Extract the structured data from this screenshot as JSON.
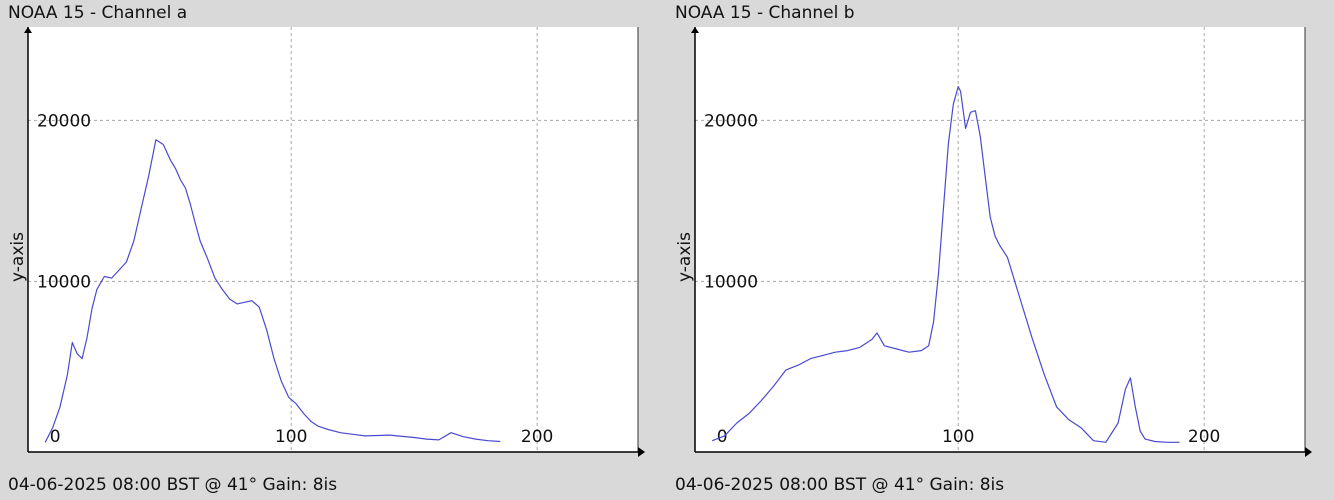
{
  "colors": {
    "background": "#d9d9d9",
    "plot_background": "#ffffff",
    "line": "#4a4ad0",
    "grid": "#a8a8a8",
    "axis": "#000000"
  },
  "chart_data": [
    {
      "type": "line",
      "title": "NOAA 15 - Channel a",
      "ylabel": "y-axis",
      "footer": "04-06-2025 08:00 BST @ 41° Gain: 8is",
      "xlim": [
        -7,
        241
      ],
      "ylim": [
        -600,
        25800
      ],
      "xticks": [
        0,
        100,
        200
      ],
      "yticks": [
        10000,
        20000
      ],
      "grid": true,
      "x": [
        0,
        3,
        6,
        9,
        11,
        13,
        15,
        17,
        19,
        21,
        24,
        27,
        30,
        33,
        36,
        39,
        42,
        45,
        48,
        51,
        53,
        55,
        57,
        59,
        61,
        63,
        66,
        69,
        72,
        75,
        78,
        81,
        84,
        87,
        90,
        93,
        96,
        99,
        102,
        105,
        108,
        111,
        115,
        120,
        125,
        130,
        140,
        150,
        155,
        160,
        165,
        170,
        175,
        180,
        185
      ],
      "y": [
        0,
        900,
        2200,
        4200,
        6200,
        5500,
        5200,
        6500,
        8300,
        9500,
        10300,
        10200,
        10700,
        11200,
        12500,
        14500,
        16500,
        18800,
        18500,
        17500,
        17000,
        16300,
        15800,
        14800,
        13600,
        12500,
        11400,
        10200,
        9500,
        8900,
        8600,
        8700,
        8800,
        8400,
        7000,
        5200,
        3800,
        2800,
        2400,
        1800,
        1300,
        1000,
        800,
        600,
        500,
        400,
        450,
        300,
        200,
        150,
        600,
        350,
        200,
        100,
        50
      ]
    },
    {
      "type": "line",
      "title": "NOAA 15 - Channel b",
      "ylabel": "y-axis",
      "footer": "04-06-2025 08:00 BST @ 41° Gain: 8is",
      "xlim": [
        -7,
        241
      ],
      "ylim": [
        -600,
        25800
      ],
      "xticks": [
        0,
        100,
        200
      ],
      "yticks": [
        10000,
        20000
      ],
      "grid": true,
      "x": [
        0,
        5,
        10,
        15,
        20,
        25,
        30,
        35,
        40,
        45,
        50,
        55,
        60,
        65,
        67,
        70,
        75,
        80,
        85,
        88,
        90,
        92,
        94,
        96,
        98,
        100,
        101,
        103,
        105,
        107,
        109,
        111,
        113,
        115,
        117,
        120,
        125,
        130,
        135,
        140,
        145,
        150,
        155,
        160,
        165,
        168,
        170,
        172,
        174,
        176,
        180,
        185,
        190
      ],
      "y": [
        100,
        400,
        1200,
        1800,
        2600,
        3500,
        4500,
        4800,
        5200,
        5400,
        5600,
        5700,
        5900,
        6400,
        6800,
        6000,
        5800,
        5600,
        5700,
        6000,
        7500,
        10500,
        14500,
        18500,
        21000,
        22100,
        21800,
        19500,
        20500,
        20600,
        19000,
        16500,
        14000,
        12800,
        12200,
        11500,
        9000,
        6500,
        4200,
        2200,
        1400,
        900,
        100,
        0,
        1200,
        3300,
        4000,
        2200,
        700,
        200,
        50,
        0,
        0
      ]
    }
  ]
}
